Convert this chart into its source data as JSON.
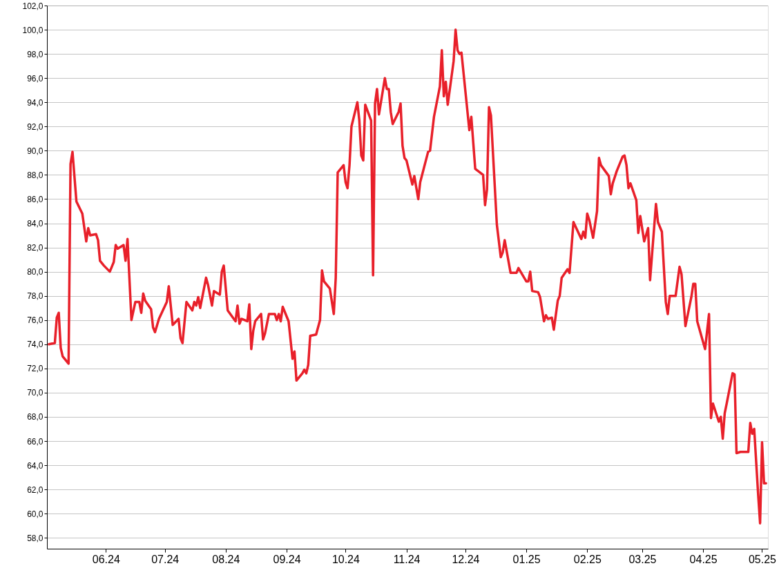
{
  "chart_data": {
    "type": "line",
    "grid": "y",
    "marker": "none",
    "line_style": "solid",
    "xlim": [
      "2024-05-02",
      "2025-05-04"
    ],
    "ylim": [
      57.1,
      102
    ],
    "xticks": [
      {
        "value": "2024-06-01",
        "label": "06.24"
      },
      {
        "value": "2024-07-01",
        "label": "07.24"
      },
      {
        "value": "2024-08-01",
        "label": "08.24"
      },
      {
        "value": "2024-09-01",
        "label": "09.24"
      },
      {
        "value": "2024-10-01",
        "label": "10.24"
      },
      {
        "value": "2024-11-01",
        "label": "11.24"
      },
      {
        "value": "2024-12-01",
        "label": "12.24"
      },
      {
        "value": "2025-01-01",
        "label": "01.25"
      },
      {
        "value": "2025-02-01",
        "label": "02.25"
      },
      {
        "value": "2025-03-01",
        "label": "03.25"
      },
      {
        "value": "2025-04-01",
        "label": "04.25"
      },
      {
        "value": "2025-05-01",
        "label": "05.25"
      }
    ],
    "yticks": [
      {
        "value": 58,
        "label": "58,0"
      },
      {
        "value": 60,
        "label": "60,0"
      },
      {
        "value": 62,
        "label": "62,0"
      },
      {
        "value": 64,
        "label": "64,0"
      },
      {
        "value": 66,
        "label": "66,0"
      },
      {
        "value": 68,
        "label": "68,0"
      },
      {
        "value": 70,
        "label": "70,0"
      },
      {
        "value": 72,
        "label": "72,0"
      },
      {
        "value": 74,
        "label": "74,0"
      },
      {
        "value": 76,
        "label": "76,0"
      },
      {
        "value": 78,
        "label": "78,0"
      },
      {
        "value": 80,
        "label": "80,0"
      },
      {
        "value": 82,
        "label": "82,0"
      },
      {
        "value": 84,
        "label": "84,0"
      },
      {
        "value": 86,
        "label": "86,0"
      },
      {
        "value": 88,
        "label": "88,0"
      },
      {
        "value": 90,
        "label": "90,0"
      },
      {
        "value": 92,
        "label": "92,0"
      },
      {
        "value": 94,
        "label": "94,0"
      },
      {
        "value": 96,
        "label": "96,0"
      },
      {
        "value": 98,
        "label": "98,0"
      },
      {
        "value": 100,
        "label": "100,0"
      },
      {
        "value": 102,
        "label": "102,0"
      }
    ],
    "x": [
      "2024-05-03",
      "2024-05-06",
      "2024-05-07",
      "2024-05-08",
      "2024-05-09",
      "2024-05-10",
      "2024-05-13",
      "2024-05-14",
      "2024-05-15",
      "2024-05-17",
      "2024-05-20",
      "2024-05-22",
      "2024-05-23",
      "2024-05-24",
      "2024-05-27",
      "2024-05-28",
      "2024-05-29",
      "2024-05-31",
      "2024-06-03",
      "2024-06-05",
      "2024-06-06",
      "2024-06-07",
      "2024-06-10",
      "2024-06-11",
      "2024-06-12",
      "2024-06-14",
      "2024-06-16",
      "2024-06-18",
      "2024-06-19",
      "2024-06-20",
      "2024-06-21",
      "2024-06-24",
      "2024-06-25",
      "2024-06-26",
      "2024-06-28",
      "2024-07-02",
      "2024-07-03",
      "2024-07-05",
      "2024-07-08",
      "2024-07-09",
      "2024-07-10",
      "2024-07-12",
      "2024-07-15",
      "2024-07-16",
      "2024-07-17",
      "2024-07-18",
      "2024-07-19",
      "2024-07-22",
      "2024-07-23",
      "2024-07-25",
      "2024-07-26",
      "2024-07-29",
      "2024-07-30",
      "2024-07-31",
      "2024-08-02",
      "2024-08-06",
      "2024-08-07",
      "2024-08-08",
      "2024-08-09",
      "2024-08-12",
      "2024-08-13",
      "2024-08-14",
      "2024-08-15",
      "2024-08-16",
      "2024-08-19",
      "2024-08-20",
      "2024-08-21",
      "2024-08-23",
      "2024-08-26",
      "2024-08-27",
      "2024-08-28",
      "2024-08-29",
      "2024-08-30",
      "2024-09-02",
      "2024-09-04",
      "2024-09-05",
      "2024-09-06",
      "2024-09-09",
      "2024-09-10",
      "2024-09-11",
      "2024-09-12",
      "2024-09-13",
      "2024-09-16",
      "2024-09-18",
      "2024-09-19",
      "2024-09-20",
      "2024-09-23",
      "2024-09-25",
      "2024-09-26",
      "2024-09-27",
      "2024-09-30",
      "2024-10-01",
      "2024-10-02",
      "2024-10-03",
      "2024-10-04",
      "2024-10-07",
      "2024-10-08",
      "2024-10-09",
      "2024-10-10",
      "2024-10-11",
      "2024-10-14",
      "2024-10-15",
      "2024-10-16",
      "2024-10-17",
      "2024-10-18",
      "2024-10-21",
      "2024-10-22",
      "2024-10-23",
      "2024-10-24",
      "2024-10-25",
      "2024-10-28",
      "2024-10-29",
      "2024-10-30",
      "2024-10-31",
      "2024-11-01",
      "2024-11-04",
      "2024-11-05",
      "2024-11-07",
      "2024-11-08",
      "2024-11-12",
      "2024-11-13",
      "2024-11-15",
      "2024-11-18",
      "2024-11-19",
      "2024-11-20",
      "2024-11-21",
      "2024-11-22",
      "2024-11-25",
      "2024-11-26",
      "2024-11-27",
      "2024-11-28",
      "2024-11-29",
      "2024-12-03",
      "2024-12-04",
      "2024-12-06",
      "2024-12-10",
      "2024-12-11",
      "2024-12-12",
      "2024-12-13",
      "2024-12-14",
      "2024-12-17",
      "2024-12-19",
      "2024-12-20",
      "2024-12-21",
      "2024-12-24",
      "2024-12-27",
      "2024-12-28",
      "2025-01-01",
      "2025-01-02",
      "2025-01-03",
      "2025-01-04",
      "2025-01-07",
      "2025-01-08",
      "2025-01-10",
      "2025-01-11",
      "2025-01-12",
      "2025-01-14",
      "2025-01-15",
      "2025-01-17",
      "2025-01-18",
      "2025-01-19",
      "2025-01-22",
      "2025-01-23",
      "2025-01-25",
      "2025-01-29",
      "2025-01-30",
      "2025-01-31",
      "2025-02-01",
      "2025-02-02",
      "2025-02-04",
      "2025-02-06",
      "2025-02-07",
      "2025-02-08",
      "2025-02-12",
      "2025-02-13",
      "2025-02-14",
      "2025-02-16",
      "2025-02-19",
      "2025-02-20",
      "2025-02-21",
      "2025-02-22",
      "2025-02-23",
      "2025-02-26",
      "2025-02-27",
      "2025-02-28",
      "2025-03-02",
      "2025-03-04",
      "2025-03-05",
      "2025-03-08",
      "2025-03-09",
      "2025-03-11",
      "2025-03-13",
      "2025-03-14",
      "2025-03-15",
      "2025-03-18",
      "2025-03-20",
      "2025-03-21",
      "2025-03-23",
      "2025-03-26",
      "2025-03-27",
      "2025-03-28",
      "2025-03-29",
      "2025-04-02",
      "2025-04-04",
      "2025-04-05",
      "2025-04-06",
      "2025-04-09",
      "2025-04-10",
      "2025-04-11",
      "2025-04-12",
      "2025-04-13",
      "2025-04-16",
      "2025-04-17",
      "2025-04-18",
      "2025-04-20",
      "2025-04-24",
      "2025-04-25",
      "2025-04-26",
      "2025-04-27",
      "2025-04-29",
      "2025-04-30",
      "2025-05-01",
      "2025-05-02",
      "2025-05-03"
    ],
    "series": [
      {
        "color": "#e8202a",
        "values": [
          74.0,
          74.1,
          76.2,
          76.6,
          73.7,
          73.0,
          72.4,
          88.9,
          89.9,
          85.8,
          84.8,
          82.5,
          83.6,
          83.0,
          83.1,
          82.6,
          80.9,
          80.5,
          80.0,
          80.8,
          82.2,
          81.9,
          82.2,
          80.9,
          82.7,
          76.0,
          77.5,
          77.5,
          76.6,
          78.2,
          77.6,
          76.9,
          75.4,
          75.0,
          76.1,
          77.5,
          78.8,
          75.6,
          76.1,
          74.5,
          74.1,
          77.5,
          76.8,
          77.5,
          77.2,
          77.9,
          77.0,
          79.5,
          78.9,
          77.2,
          78.4,
          78.1,
          80.0,
          80.5,
          76.8,
          75.9,
          77.2,
          75.7,
          76.1,
          75.9,
          77.3,
          73.6,
          75.1,
          75.9,
          76.5,
          74.4,
          74.9,
          76.5,
          76.5,
          76.0,
          76.5,
          75.9,
          77.1,
          75.9,
          72.8,
          73.4,
          71.0,
          71.6,
          71.9,
          71.6,
          72.3,
          74.7,
          74.8,
          76.0,
          80.1,
          79.2,
          78.6,
          76.5,
          79.5,
          88.2,
          88.8,
          87.4,
          86.9,
          88.8,
          92.0,
          94.0,
          92.5,
          89.6,
          89.2,
          93.8,
          92.5,
          79.7,
          93.9,
          95.1,
          93.0,
          96.0,
          95.1,
          95.1,
          93.2,
          92.2,
          93.2,
          93.9,
          90.4,
          89.4,
          89.2,
          87.2,
          87.9,
          86.0,
          87.4,
          89.9,
          90.0,
          92.8,
          95.3,
          98.3,
          94.5,
          95.7,
          93.8,
          97.4,
          100.0,
          98.3,
          98.0,
          98.1,
          91.7,
          92.8,
          88.5,
          88.0,
          85.5,
          86.8,
          93.6,
          92.9,
          83.9,
          81.2,
          81.6,
          82.6,
          79.9,
          79.9,
          80.3,
          79.2,
          79.2,
          80.0,
          78.4,
          78.3,
          77.9,
          75.9,
          76.4,
          76.1,
          76.2,
          75.2,
          77.6,
          78.0,
          79.5,
          80.2,
          79.9,
          84.1,
          82.7,
          83.3,
          82.8,
          84.8,
          84.3,
          82.8,
          85.0,
          89.4,
          88.8,
          87.9,
          86.4,
          87.3,
          88.3,
          89.5,
          89.6,
          88.8,
          86.9,
          87.3,
          85.9,
          83.2,
          84.6,
          82.5,
          83.6,
          79.3,
          85.6,
          84.1,
          83.3,
          77.5,
          76.5,
          78.0,
          78.0,
          80.4,
          79.8,
          75.5,
          77.9,
          79.0,
          79.0,
          75.9,
          73.6,
          76.5,
          67.9,
          69.1,
          67.6,
          68.0,
          66.2,
          68.3,
          69.1,
          71.6,
          71.5,
          65.0,
          65.1,
          65.1,
          67.5,
          66.6,
          67.0,
          61.6,
          59.2,
          65.9,
          62.5,
          62.5
        ]
      }
    ]
  }
}
